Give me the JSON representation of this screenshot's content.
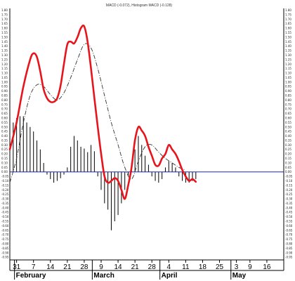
{
  "chart_data": {
    "type": "line",
    "title": "MACD (-0.072), Histogram MACD (-0.128)",
    "ylim": [
      -0.98,
      1.82
    ],
    "y_ticks": [
      "1.80",
      "1.75",
      "1.70",
      "1.65",
      "1.60",
      "1.55",
      "1.50",
      "1.45",
      "1.40",
      "1.35",
      "1.30",
      "1.25",
      "1.20",
      "1.15",
      "1.10",
      "1.05",
      "1.00",
      "0.95",
      "0.90",
      "0.85",
      "0.80",
      "0.75",
      "0.70",
      "0.65",
      "0.60",
      "0.55",
      "0.50",
      "0.45",
      "0.40",
      "0.35",
      "0.30",
      "0.25",
      "0.20",
      "0.15",
      "0.10",
      "0.05",
      "0.00",
      "-0.05",
      "-0.10",
      "-0.15",
      "-0.20",
      "-0.25",
      "-0.30",
      "-0.35",
      "-0.40",
      "-0.45",
      "-0.50",
      "-0.55",
      "-0.60",
      "-0.65",
      "-0.70",
      "-0.75",
      "-0.80",
      "-0.85",
      "-0.90",
      "-0.95"
    ],
    "x_ticks": [
      {
        "label": "31",
        "x": 0
      },
      {
        "label": "7",
        "x": 5
      },
      {
        "label": "14",
        "x": 10
      },
      {
        "label": "21",
        "x": 15
      },
      {
        "label": "28",
        "x": 20
      },
      {
        "label": "9",
        "x": 25
      },
      {
        "label": "14",
        "x": 30
      },
      {
        "label": "21",
        "x": 35
      },
      {
        "label": "28",
        "x": 40
      },
      {
        "label": "4",
        "x": 45
      },
      {
        "label": "11",
        "x": 50
      },
      {
        "label": "18",
        "x": 55
      },
      {
        "label": "25",
        "x": 60
      },
      {
        "label": "3",
        "x": 65
      },
      {
        "label": "9",
        "x": 69
      },
      {
        "label": "16",
        "x": 74
      }
    ],
    "months": [
      {
        "label": "February",
        "x": 0
      },
      {
        "label": "March",
        "x": 23
      },
      {
        "label": "April",
        "x": 43
      },
      {
        "label": "May",
        "x": 64
      }
    ],
    "zero_line": 0,
    "x_domain": [
      -2,
      79
    ],
    "series": [
      {
        "name": "MACD",
        "color": "#e8141c",
        "points": [
          [
            -2,
            0.25
          ],
          [
            0,
            0.55
          ],
          [
            2,
            0.95
          ],
          [
            4,
            1.25
          ],
          [
            5,
            1.32
          ],
          [
            6,
            1.28
          ],
          [
            7,
            1.12
          ],
          [
            8,
            0.92
          ],
          [
            9,
            0.82
          ],
          [
            10,
            0.78
          ],
          [
            11,
            0.78
          ],
          [
            12,
            0.82
          ],
          [
            13,
            0.96
          ],
          [
            14,
            1.2
          ],
          [
            15,
            1.42
          ],
          [
            16,
            1.45
          ],
          [
            17,
            1.43
          ],
          [
            18,
            1.5
          ],
          [
            19,
            1.6
          ],
          [
            20,
            1.62
          ],
          [
            21,
            1.45
          ],
          [
            22,
            1.15
          ],
          [
            23,
            0.82
          ],
          [
            24,
            0.5
          ],
          [
            25,
            0.2
          ],
          [
            26,
            -0.05
          ],
          [
            27,
            -0.12
          ],
          [
            28,
            -0.1
          ],
          [
            29,
            -0.07
          ],
          [
            30,
            -0.1
          ],
          [
            31,
            -0.2
          ],
          [
            32,
            -0.3
          ],
          [
            33,
            -0.15
          ],
          [
            34,
            0.05
          ],
          [
            35,
            0.35
          ],
          [
            36,
            0.5
          ],
          [
            37,
            0.46
          ],
          [
            38,
            0.4
          ],
          [
            39,
            0.28
          ],
          [
            40,
            0.18
          ],
          [
            41,
            0.08
          ],
          [
            42,
            0.07
          ],
          [
            43,
            0.15
          ],
          [
            44,
            0.2
          ],
          [
            45,
            0.3
          ],
          [
            46,
            0.25
          ],
          [
            47,
            0.2
          ],
          [
            48,
            0.12
          ],
          [
            49,
            0.02
          ],
          [
            50,
            -0.05
          ],
          [
            51,
            -0.1
          ],
          [
            52,
            -0.08
          ],
          [
            53,
            -0.11
          ]
        ]
      },
      {
        "name": "Signal",
        "color": "#333333",
        "points": [
          [
            -2,
            -0.12
          ],
          [
            0,
            0.15
          ],
          [
            2,
            0.55
          ],
          [
            4,
            0.85
          ],
          [
            6,
            0.97
          ],
          [
            8,
            0.95
          ],
          [
            10,
            0.86
          ],
          [
            12,
            0.8
          ],
          [
            14,
            0.88
          ],
          [
            16,
            1.05
          ],
          [
            18,
            1.25
          ],
          [
            20,
            1.42
          ],
          [
            22,
            1.38
          ],
          [
            24,
            1.15
          ],
          [
            26,
            0.85
          ],
          [
            28,
            0.55
          ],
          [
            30,
            0.3
          ],
          [
            32,
            0.05
          ],
          [
            34,
            -0.08
          ],
          [
            36,
            0.12
          ],
          [
            38,
            0.28
          ],
          [
            40,
            0.3
          ],
          [
            42,
            0.22
          ],
          [
            44,
            0.15
          ],
          [
            46,
            0.1
          ],
          [
            48,
            0.05
          ],
          [
            50,
            0.02
          ]
        ]
      }
    ],
    "histogram": {
      "name": "Histogram MACD",
      "color": "#000000",
      "bars": [
        [
          -1,
          0.55
        ],
        [
          0,
          0.6
        ],
        [
          1,
          0.62
        ],
        [
          2,
          0.62
        ],
        [
          3,
          0.55
        ],
        [
          4,
          0.5
        ],
        [
          5,
          0.45
        ],
        [
          6,
          0.35
        ],
        [
          7,
          0.25
        ],
        [
          8,
          0.1
        ],
        [
          9,
          -0.03
        ],
        [
          10,
          -0.08
        ],
        [
          11,
          -0.12
        ],
        [
          12,
          -0.1
        ],
        [
          13,
          -0.07
        ],
        [
          14,
          -0.03
        ],
        [
          15,
          0.05
        ],
        [
          16,
          0.28
        ],
        [
          17,
          0.4
        ],
        [
          18,
          0.35
        ],
        [
          19,
          0.28
        ],
        [
          20,
          0.26
        ],
        [
          21,
          0.22
        ],
        [
          22,
          0.3
        ],
        [
          23,
          0.23
        ],
        [
          24,
          -0.05
        ],
        [
          25,
          -0.2
        ],
        [
          26,
          -0.35
        ],
        [
          27,
          -0.42
        ],
        [
          28,
          -0.65
        ],
        [
          29,
          -0.55
        ],
        [
          30,
          -0.48
        ],
        [
          31,
          -0.35
        ],
        [
          32,
          -0.2
        ],
        [
          33,
          -0.05
        ],
        [
          34,
          0.1
        ],
        [
          35,
          0.25
        ],
        [
          36,
          0.4
        ],
        [
          37,
          0.3
        ],
        [
          38,
          0.18
        ],
        [
          39,
          0.08
        ],
        [
          40,
          -0.05
        ],
        [
          41,
          -0.1
        ],
        [
          42,
          -0.12
        ],
        [
          43,
          -0.08
        ],
        [
          44,
          0.05
        ],
        [
          45,
          0.12
        ],
        [
          46,
          0.1
        ],
        [
          47,
          0.05
        ],
        [
          48,
          -0.05
        ],
        [
          49,
          -0.1
        ],
        [
          50,
          -0.12
        ],
        [
          51,
          -0.12
        ],
        [
          52,
          -0.1
        ],
        [
          53,
          -0.08
        ]
      ]
    },
    "grid": false,
    "legend": "none"
  }
}
